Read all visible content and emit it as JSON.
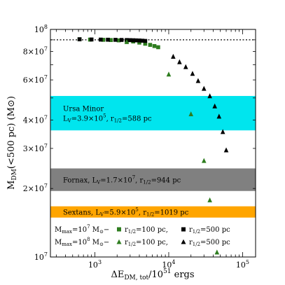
{
  "chart_data": {
    "type": "scatter",
    "x_scale": "log",
    "y_scale": "log",
    "xlim": [
      250,
      150000
    ],
    "ylim": [
      10000000,
      100000000
    ],
    "grid": false,
    "xlabel": {
      "main": "ΔE",
      "sub": "DM, tot",
      "tail": "/10",
      "sup": "51",
      "end": " ergs"
    },
    "ylabel": {
      "main": "M",
      "sub": "DM",
      "tail": "(<500 pc) (M",
      "sun": "⊙",
      "end": ")"
    },
    "x_ticks": [
      {
        "value": 1000,
        "base": "10",
        "exp": "3"
      },
      {
        "value": 10000,
        "base": "10",
        "exp": "4"
      },
      {
        "value": 100000,
        "base": "10",
        "exp": "5"
      }
    ],
    "y_ticks": [
      {
        "value": 10000000,
        "base": "10",
        "exp": "7",
        "prefix": ""
      },
      {
        "value": 20000000,
        "base": "10",
        "exp": "7",
        "prefix": "2×"
      },
      {
        "value": 30000000,
        "base": "10",
        "exp": "7",
        "prefix": "3×"
      },
      {
        "value": 40000000,
        "base": "10",
        "exp": "7",
        "prefix": "4×"
      },
      {
        "value": 60000000,
        "base": "10",
        "exp": "7",
        "prefix": "6×"
      },
      {
        "value": 80000000,
        "base": "10",
        "exp": "7",
        "prefix": "8×"
      },
      {
        "value": 100000000,
        "base": "10",
        "exp": "8",
        "prefix": ""
      }
    ],
    "reference_line": {
      "y": 90000000,
      "style": "dotted"
    },
    "bands": [
      {
        "name": "Ursa Minor",
        "y_range": [
          36000000,
          51000000
        ],
        "color": "#00e5ee",
        "label_lines": [
          {
            "t1": "Ursa Minor"
          },
          {
            "t1": "L",
            "t1sub": "V",
            "t2": "=3.9×10",
            "t2sup": "5",
            "t3": ", r",
            "t3sub": "1/2",
            "t4": "=588 pc"
          }
        ]
      },
      {
        "name": "Fornax",
        "y_range": [
          19500000,
          24500000
        ],
        "color": "#808080",
        "label_lines": [
          {
            "t1": "Fornax, L",
            "t1sub": "V",
            "t2": "=1.7×10",
            "t2sup": "7",
            "t3": ", r",
            "t3sub": "1/2",
            "t4": "=944 pc"
          }
        ]
      },
      {
        "name": "Sextans",
        "y_range": [
          14900000,
          16700000
        ],
        "color": "#ffa500",
        "label_lines": [
          {
            "t1": "Sextans, L",
            "t1sub": "V",
            "t2": "=5.9×10",
            "t2sup": "5",
            "t3": ", r",
            "t3sub": "1/2",
            "t4": "=1019 pc"
          }
        ]
      }
    ],
    "series": [
      {
        "marker": "square",
        "color": "#2e7d1f",
        "points": [
          [
            620,
            90500000
          ],
          [
            860,
            90200000
          ],
          [
            1300,
            90000000
          ],
          [
            1650,
            89800000
          ],
          [
            2100,
            89500000
          ],
          [
            2700,
            89000000
          ],
          [
            3300,
            88500000
          ],
          [
            4000,
            87500000
          ],
          [
            4800,
            86500000
          ],
          [
            5600,
            85500000
          ],
          [
            6400,
            84500000
          ],
          [
            7200,
            83500000
          ]
        ]
      },
      {
        "marker": "square",
        "color": "#000000",
        "points": [
          [
            620,
            90500000
          ],
          [
            900,
            90300000
          ],
          [
            1200,
            90200000
          ],
          [
            1500,
            90100000
          ],
          [
            1900,
            90000000
          ],
          [
            2300,
            89900000
          ],
          [
            2700,
            89800000
          ],
          [
            3000,
            89700000
          ],
          [
            3300,
            89600000
          ],
          [
            3600,
            89500000
          ],
          [
            4000,
            89400000
          ],
          [
            4400,
            89200000
          ],
          [
            4800,
            89000000
          ]
        ]
      },
      {
        "marker": "triangle",
        "color": "#2e7d1f",
        "points": [
          [
            2700,
            88200000
          ],
          [
            10000,
            63500000
          ],
          [
            20000,
            42500000
          ],
          [
            30000,
            26500000
          ],
          [
            36000,
            17800000
          ],
          [
            45000,
            10500000
          ]
        ]
      },
      {
        "marker": "triangle",
        "color": "#000000",
        "points": [
          [
            11500,
            76000000
          ],
          [
            14000,
            72000000
          ],
          [
            17000,
            68500000
          ],
          [
            21000,
            64000000
          ],
          [
            25000,
            59500000
          ],
          [
            30000,
            55000000
          ],
          [
            36000,
            51000000
          ],
          [
            42000,
            46000000
          ],
          [
            48000,
            41500000
          ],
          [
            54000,
            35500000
          ],
          [
            60000,
            29500000
          ]
        ]
      }
    ],
    "legend": {
      "placement": "bottom",
      "rows": [
        {
          "m1": "M",
          "m1sub": "max",
          "m2": "=10",
          "m2sup": "7",
          "m3": " M",
          "sun": "⊙",
          "dash": "−",
          "r1": "r",
          "r1sub": "1/2",
          "r1val": "=100 pc,",
          "r2": "r",
          "r2sub": "1/2",
          "r2val": "=500 pc",
          "marker": "square"
        },
        {
          "m1": "M",
          "m1sub": "max",
          "m2": "=10",
          "m2sup": "8",
          "m3": " M",
          "sun": "⊙",
          "dash": "−",
          "r1": "r",
          "r1sub": "1/2",
          "r1val": "=100 pc,",
          "r2": "r",
          "r2sub": "1/2",
          "r2val": "=500 pc",
          "marker": "triangle"
        }
      ]
    }
  }
}
